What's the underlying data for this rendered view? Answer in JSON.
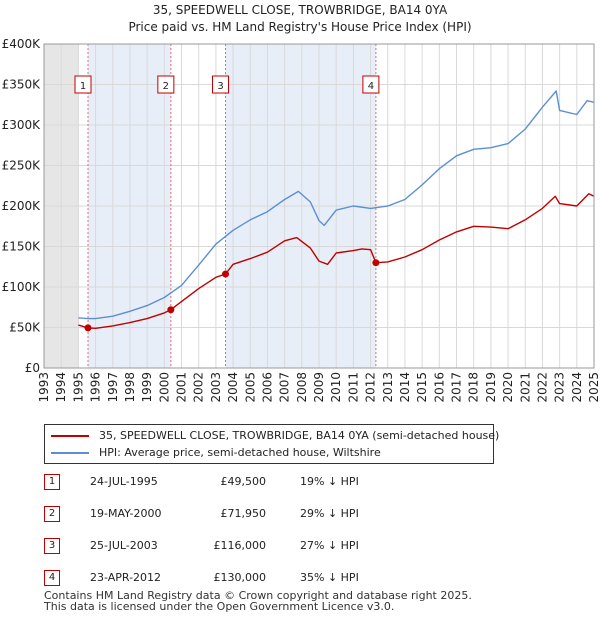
{
  "chart_data": {
    "type": "line",
    "title": "35, SPEEDWELL CLOSE, TROWBRIDGE, BA14 0YA",
    "subtitle": "Price paid vs. HM Land Registry's House Price Index (HPI)",
    "xlabel": "",
    "ylabel": "",
    "xlim": [
      1993,
      2025
    ],
    "ylim": [
      0,
      400000
    ],
    "x_ticks": [
      1993,
      1994,
      1995,
      1996,
      1997,
      1998,
      1999,
      2000,
      2001,
      2002,
      2003,
      2004,
      2005,
      2006,
      2007,
      2008,
      2009,
      2010,
      2011,
      2012,
      2013,
      2014,
      2015,
      2016,
      2017,
      2018,
      2019,
      2020,
      2021,
      2022,
      2023,
      2024,
      2025
    ],
    "x_tick_labels": [
      "1993",
      "1994",
      "1995",
      "1996",
      "1997",
      "1998",
      "1999",
      "2000",
      "2001",
      "2002",
      "2003",
      "2004",
      "2005",
      "2006",
      "2007",
      "2008",
      "2009",
      "2010",
      "2011",
      "2012",
      "2013",
      "2014",
      "2015",
      "2016",
      "2017",
      "2018",
      "2019",
      "2020",
      "2021",
      "2022",
      "2023",
      "2024",
      "2025"
    ],
    "y_ticks": [
      0,
      50000,
      100000,
      150000,
      200000,
      250000,
      300000,
      350000,
      400000
    ],
    "y_tick_labels": [
      "£0",
      "£50K",
      "£100K",
      "£150K",
      "£200K",
      "£250K",
      "£300K",
      "£350K",
      "£400K"
    ],
    "grid": true,
    "series": [
      {
        "name": "35, SPEEDWELL CLOSE, TROWBRIDGE, BA14 0YA (semi-detached house)",
        "color": "#c00000",
        "x": [
          1995.0,
          1995.56,
          1996.0,
          1997.0,
          1998.0,
          1999.0,
          2000.0,
          2000.38,
          2001.0,
          2002.0,
          2003.0,
          2003.56,
          2004.0,
          2005.0,
          2006.0,
          2007.0,
          2007.7,
          2008.5,
          2009.0,
          2009.5,
          2010.0,
          2011.0,
          2011.5,
          2012.0,
          2012.31,
          2013.0,
          2014.0,
          2015.0,
          2016.0,
          2017.0,
          2018.0,
          2019.0,
          2020.0,
          2021.0,
          2022.0,
          2022.75,
          2023.0,
          2024.0,
          2024.7,
          2025.0
        ],
        "values": [
          53000,
          49500,
          49000,
          52000,
          56000,
          61000,
          68000,
          71950,
          82000,
          98000,
          112000,
          116000,
          128000,
          135000,
          143000,
          157000,
          161000,
          148000,
          132000,
          128000,
          142000,
          145000,
          147000,
          146000,
          130000,
          131000,
          137000,
          146000,
          158000,
          168000,
          175000,
          174000,
          172000,
          183000,
          197000,
          212000,
          203000,
          200000,
          215000,
          212000
        ]
      },
      {
        "name": "HPI: Average price, semi-detached house, Wiltshire",
        "color": "#5b8fd4",
        "x": [
          1995.0,
          1995.5,
          1996.0,
          1997.0,
          1998.0,
          1999.0,
          2000.0,
          2001.0,
          2002.0,
          2003.0,
          2004.0,
          2005.0,
          2006.0,
          2007.0,
          2007.8,
          2008.5,
          2009.0,
          2009.3,
          2010.0,
          2011.0,
          2012.0,
          2013.0,
          2014.0,
          2015.0,
          2016.0,
          2017.0,
          2018.0,
          2019.0,
          2020.0,
          2021.0,
          2022.0,
          2022.8,
          2023.0,
          2024.0,
          2024.6,
          2025.0
        ],
        "values": [
          62000,
          61000,
          61000,
          64000,
          70000,
          77000,
          87000,
          102000,
          127000,
          153000,
          170000,
          183000,
          193000,
          208000,
          218000,
          205000,
          182000,
          176000,
          195000,
          200000,
          197000,
          200000,
          208000,
          226000,
          246000,
          262000,
          270000,
          272000,
          277000,
          295000,
          322000,
          342000,
          318000,
          313000,
          330000,
          328000
        ]
      }
    ],
    "markers": [
      {
        "label": "1",
        "x": 1995.56,
        "value": 49500
      },
      {
        "label": "2",
        "x": 2000.38,
        "value": 71950
      },
      {
        "label": "3",
        "x": 2003.56,
        "value": 116000
      },
      {
        "label": "4",
        "x": 2012.31,
        "value": 130000
      }
    ]
  },
  "legend": {
    "property_label": "35, SPEEDWELL CLOSE, TROWBRIDGE, BA14 0YA (semi-detached house)",
    "hpi_label": "HPI: Average price, semi-detached house, Wiltshire"
  },
  "transactions": [
    {
      "num": "1",
      "date": "24-JUL-1995",
      "price": "£49,500",
      "hpi": "19% ↓ HPI"
    },
    {
      "num": "2",
      "date": "19-MAY-2000",
      "price": "£71,950",
      "hpi": "29% ↓ HPI"
    },
    {
      "num": "3",
      "date": "25-JUL-2003",
      "price": "£116,000",
      "hpi": "27% ↓ HPI"
    },
    {
      "num": "4",
      "date": "23-APR-2012",
      "price": "£130,000",
      "hpi": "35% ↓ HPI"
    }
  ],
  "footer": {
    "line1": "Contains HM Land Registry data © Crown copyright and database right 2025.",
    "line2": "This data is licensed under the Open Government Licence v3.0."
  }
}
